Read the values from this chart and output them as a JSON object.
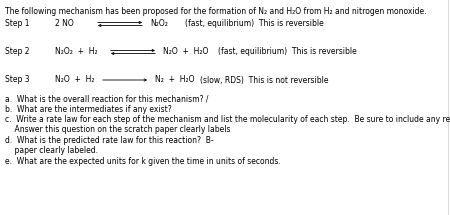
{
  "title": "The following mechanism has been proposed for the formation of N₂ and H₂O from H₂ and nitrogen monoxide.",
  "step1_label": "Step 1",
  "step1_reactant": "2 NO",
  "step1_product": "N₂O₂",
  "step1_note": "(fast, equilibrium)  This is reversible",
  "step2_label": "Step 2",
  "step2_reactant": "N₂O₂  +  H₂",
  "step2_product": "N₂O  +  H₂O",
  "step2_note": "(fast, equilibrium)  This is reversible",
  "step3_label": "Step 3",
  "step3_reactant": "N₂O  +  H₂",
  "step3_product": "N₂  +  H₂O",
  "step3_note": "(slow, RDS)  This is not reversible",
  "qa": "a.  What is the overall reaction for this mechanism? /",
  "qb": "b.  What are the intermediates if any exist?",
  "qc1": "c.  Write a rate law for each step of the mechanism and list the molecularity of each step.  Be sure to include any reversible steps as well.",
  "qc2": "    Answer this question on the scratch paper clearly labels",
  "qd1": "d.  What is the predicted rate law for this reaction?  B-",
  "qd2": "    paper clearly labeled.",
  "qe": "e.  What are the expected units for k given the time in units of seconds.",
  "bg_color": "#ffffff",
  "text_color": "#000000",
  "font_size": 5.5
}
